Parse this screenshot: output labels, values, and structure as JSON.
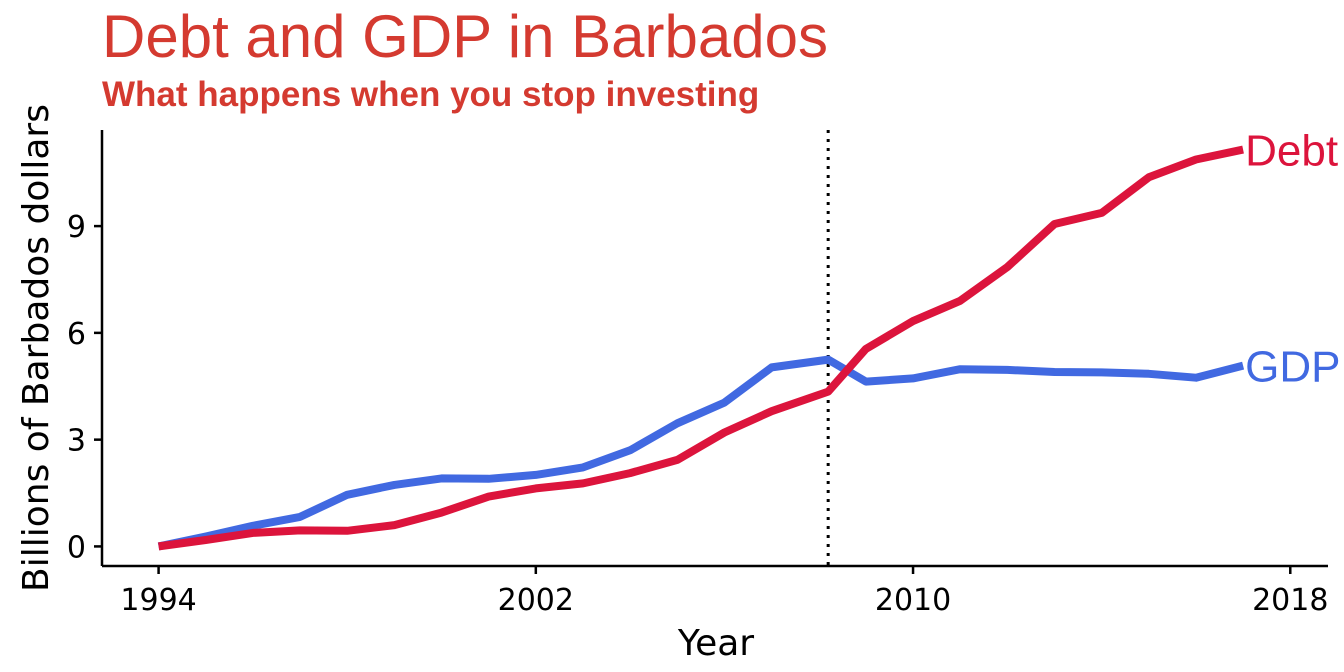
{
  "chart_data": {
    "type": "line",
    "title": "Debt and GDP in Barbados",
    "subtitle": "What happens when you stop investing",
    "xlabel": "Year",
    "ylabel": "Billions of Barbados dollars",
    "xlim": [
      1992.8,
      2018.8
    ],
    "ylim": [
      -0.55,
      11.7
    ],
    "x_ticks": [
      1994,
      2002,
      2010,
      2018
    ],
    "y_ticks": [
      0,
      3,
      6,
      9
    ],
    "grid": false,
    "legend": "direct labels at line ends",
    "reference_line": {
      "x": 2008.2,
      "style": "dotted"
    },
    "x": [
      1994,
      1995,
      1996,
      1997,
      1998,
      1999,
      2000,
      2001,
      2002,
      2003,
      2004,
      2005,
      2006,
      2007,
      2008.2,
      2009,
      2010,
      2011,
      2012,
      2013,
      2014,
      2015,
      2016,
      2017
    ],
    "series": [
      {
        "name": "Debt",
        "color": "#dc143c",
        "values": [
          0.0,
          0.18,
          0.38,
          0.45,
          0.44,
          0.6,
          0.95,
          1.4,
          1.63,
          1.77,
          2.06,
          2.43,
          3.2,
          3.8,
          4.35,
          5.55,
          6.33,
          6.9,
          7.85,
          9.06,
          9.37,
          10.37,
          10.87,
          11.15
        ]
      },
      {
        "name": "GDP",
        "color": "#4169e1",
        "values": [
          0.0,
          0.28,
          0.58,
          0.83,
          1.45,
          1.73,
          1.91,
          1.9,
          2.01,
          2.22,
          2.7,
          3.46,
          4.04,
          5.03,
          5.25,
          4.63,
          4.72,
          4.98,
          4.96,
          4.9,
          4.89,
          4.85,
          4.74,
          5.08
        ]
      }
    ]
  }
}
